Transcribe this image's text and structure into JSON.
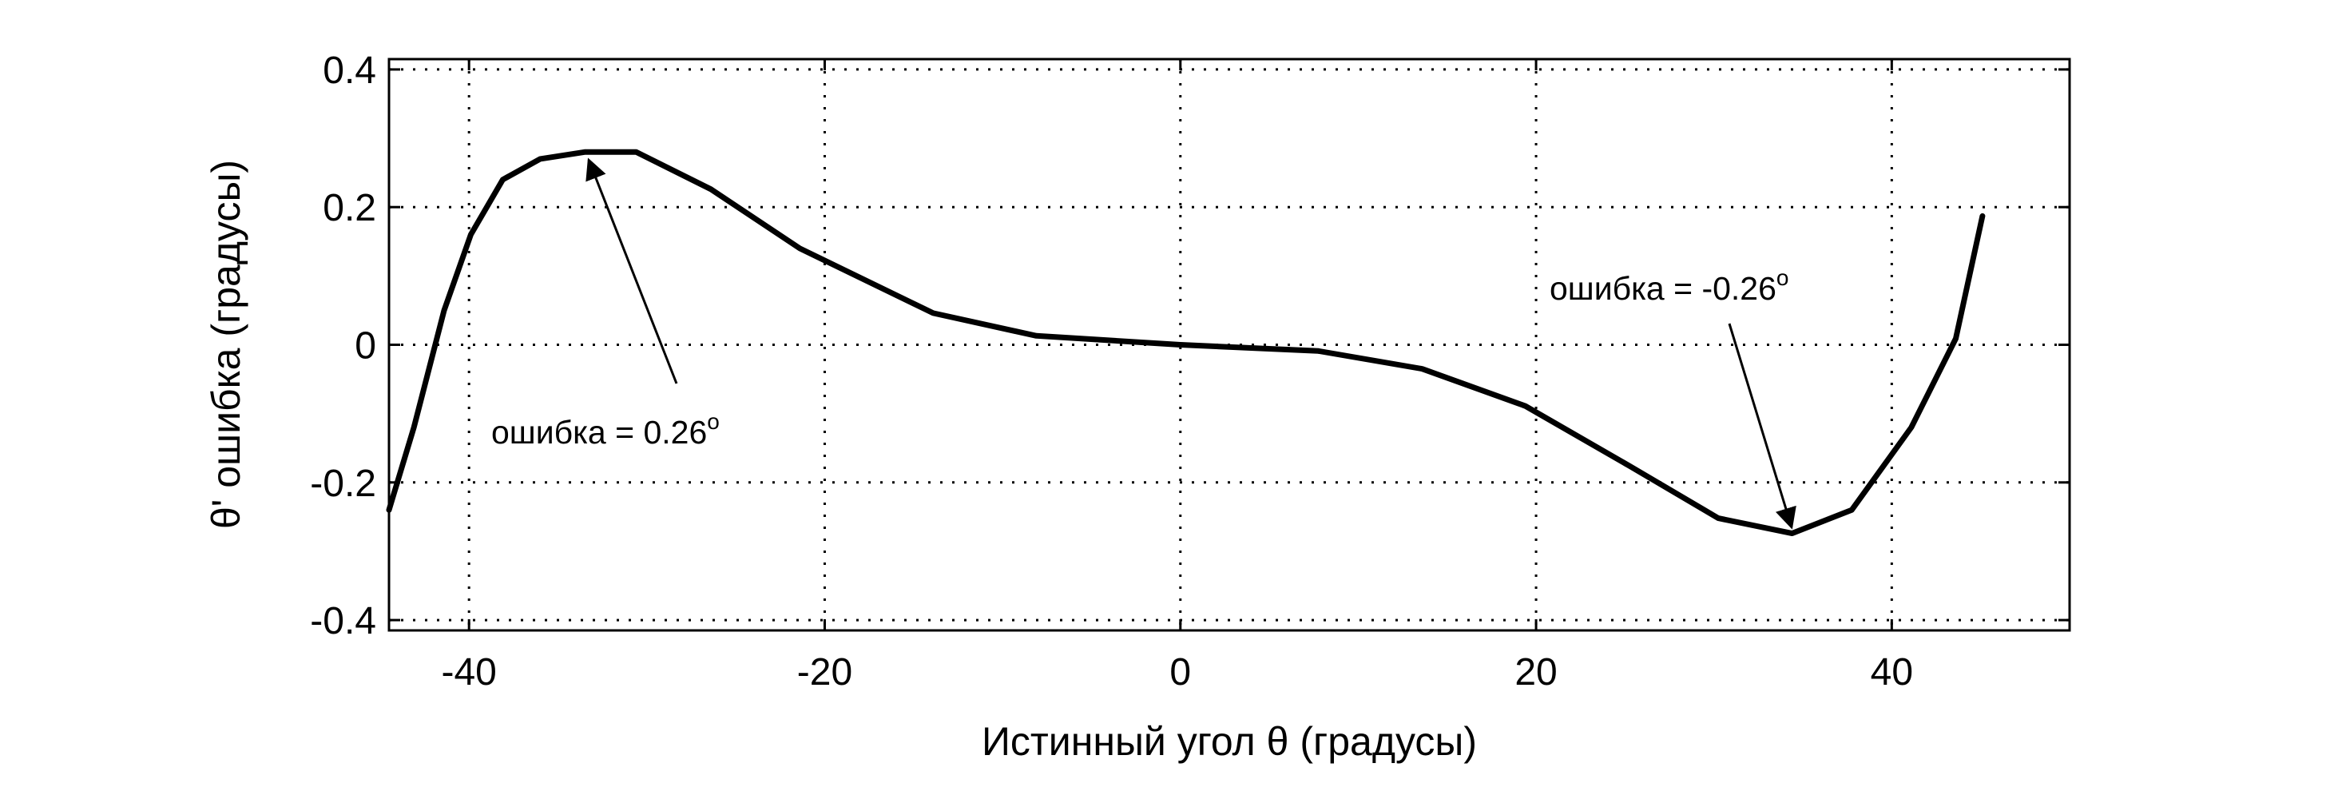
{
  "chart_data": {
    "type": "line",
    "x_label": "Истинный угол θ (градусы)",
    "y_label": "θ' ошибка (градусы)",
    "series": [
      {
        "color": "#000000",
        "x": [
          -44.5,
          -43.1,
          -41.4,
          -39.9,
          -38.1,
          -36,
          -33.5,
          -30.6,
          -26.4,
          -21.4,
          -13.9,
          -8.1,
          0,
          7.75,
          13.6,
          19.4,
          25.25,
          30.25,
          34.4,
          37.75,
          41.1,
          43.6,
          45.1
        ],
        "values": [
          -0.24,
          -0.12,
          0.05,
          0.16,
          0.24,
          0.27,
          0.28,
          0.28,
          0.226,
          0.14,
          0.046,
          0.013,
          0,
          -0.009,
          -0.035,
          -0.089,
          -0.176,
          -0.252,
          -0.274,
          -0.24,
          -0.12,
          0.009,
          0.187
        ]
      }
    ],
    "xlim": [
      -44.5,
      50
    ],
    "xticks": [
      -40,
      -20,
      0,
      20,
      40
    ],
    "ylim": [
      -0.415,
      0.415
    ],
    "yticks": [
      -0.4,
      -0.2,
      0,
      0.2,
      0.4
    ],
    "grid": true,
    "annotations": [
      {
        "text": "ошибка = 0.26",
        "sup": "o"
      },
      {
        "text": "ошибка = -0.26",
        "sup": "o"
      }
    ]
  }
}
